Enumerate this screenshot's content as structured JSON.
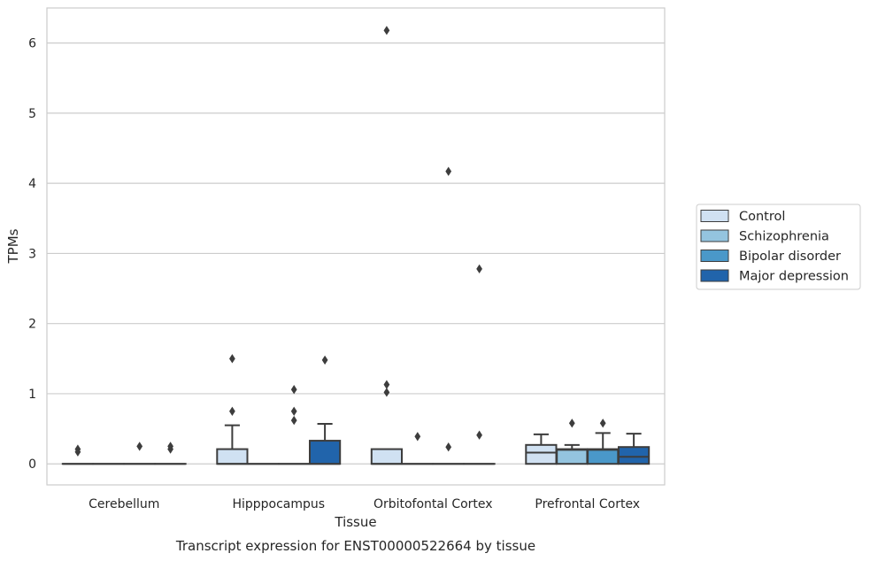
{
  "chart_data": {
    "type": "boxplot",
    "title": "Transcript expression for ENST00000522664 by tissue",
    "xlabel": "Tissue",
    "ylabel": "TPMs",
    "ylim": [
      -0.3,
      6.5
    ],
    "yticks": [
      0,
      1,
      2,
      3,
      4,
      5,
      6
    ],
    "grid": true,
    "legend_position": "right",
    "categories": [
      "Cerebellum",
      "Hipppocampus",
      "Orbitofontal Cortex",
      "Prefrontal Cortex"
    ],
    "series": [
      {
        "name": "Control",
        "color": "#d0e1f2",
        "boxes": [
          {
            "q1": 0,
            "median": 0,
            "q3": 0,
            "whislo": 0,
            "whishi": 0,
            "fliers": [
              0.17,
              0.21
            ]
          },
          {
            "q1": 0,
            "median": 0,
            "q3": 0.21,
            "whislo": 0,
            "whishi": 0.55,
            "fliers": [
              0.75,
              1.5
            ]
          },
          {
            "q1": 0,
            "median": 0,
            "q3": 0.21,
            "whislo": 0,
            "whishi": 0.21,
            "fliers": [
              1.02,
              1.13,
              6.18
            ]
          },
          {
            "q1": 0,
            "median": 0.16,
            "q3": 0.27,
            "whislo": 0,
            "whishi": 0.42,
            "fliers": []
          }
        ]
      },
      {
        "name": "Schizophrenia",
        "color": "#94c4df",
        "boxes": [
          {
            "q1": 0,
            "median": 0,
            "q3": 0,
            "whislo": 0,
            "whishi": 0,
            "fliers": []
          },
          {
            "q1": 0,
            "median": 0,
            "q3": 0,
            "whislo": 0,
            "whishi": 0,
            "fliers": []
          },
          {
            "q1": 0,
            "median": 0,
            "q3": 0,
            "whislo": 0,
            "whishi": 0,
            "fliers": [
              0.39
            ]
          },
          {
            "q1": 0,
            "median": 0.2,
            "q3": 0.21,
            "whislo": 0,
            "whishi": 0.27,
            "fliers": [
              0.58
            ]
          }
        ]
      },
      {
        "name": "Bipolar disorder",
        "color": "#4a98c9",
        "boxes": [
          {
            "q1": 0,
            "median": 0,
            "q3": 0,
            "whislo": 0,
            "whishi": 0,
            "fliers": [
              0.25
            ]
          },
          {
            "q1": 0,
            "median": 0,
            "q3": 0,
            "whislo": 0,
            "whishi": 0,
            "fliers": [
              0.62,
              0.75,
              1.06
            ]
          },
          {
            "q1": 0,
            "median": 0,
            "q3": 0,
            "whislo": 0,
            "whishi": 0,
            "fliers": [
              0.24,
              4.17
            ]
          },
          {
            "q1": 0,
            "median": 0.2,
            "q3": 0.21,
            "whislo": 0,
            "whishi": 0.44,
            "fliers": [
              0.58
            ]
          }
        ]
      },
      {
        "name": "Major depression",
        "color": "#2164ab",
        "boxes": [
          {
            "q1": 0,
            "median": 0,
            "q3": 0,
            "whislo": 0,
            "whishi": 0,
            "fliers": [
              0.21,
              0.25
            ]
          },
          {
            "q1": 0,
            "median": 0,
            "q3": 0.33,
            "whislo": 0,
            "whishi": 0.57,
            "fliers": [
              1.48
            ]
          },
          {
            "q1": 0,
            "median": 0,
            "q3": 0,
            "whislo": 0,
            "whishi": 0,
            "fliers": [
              0.41,
              2.78
            ]
          },
          {
            "q1": 0,
            "median": 0.1,
            "q3": 0.24,
            "whislo": 0,
            "whishi": 0.43,
            "fliers": []
          }
        ]
      }
    ]
  }
}
